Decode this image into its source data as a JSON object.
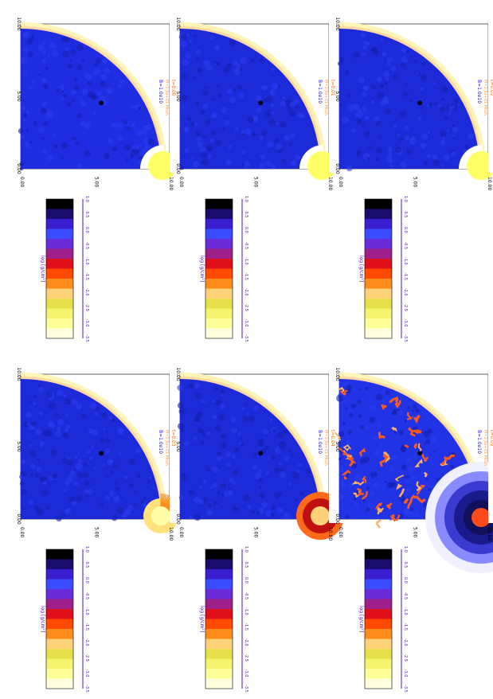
{
  "figure": {
    "colorbar_label": "log [g/cm²]",
    "colorbar_ticks": [
      "-3.5",
      "-3.0",
      "-2.5",
      "-2.0",
      "-1.5",
      "-1.0",
      "-0.5",
      "0.0",
      "0.5",
      "1.0"
    ]
  },
  "chart_data": [
    {
      "type": "heatmap",
      "panel": "top-left",
      "time_label": "t=0.00",
      "info_label": "M=1.0e+01 Msun",
      "model_label": "B=1.0e10",
      "x_ticks": [
        "0.00",
        "5.00",
        "10.00"
      ],
      "y_ticks": [
        "0.00",
        "5.00",
        "10.00"
      ],
      "colorbar_label": "log [g/cm²]",
      "colorbar_ticks": [
        "-3.5",
        "-3.0",
        "-2.5",
        "-2.0",
        "-1.5",
        "-1.0",
        "-0.5",
        "0.0",
        "0.5",
        "1.0"
      ],
      "core": "small-bright",
      "turbulence": "none",
      "colors": {
        "background": "#1f2ce0",
        "rim": "#fff3b8",
        "core": "#ffff66",
        "turbulence": "#ff5a1a"
      }
    },
    {
      "type": "heatmap",
      "panel": "top-middle",
      "time_label": "t=0.01",
      "info_label": "M=1.0e+01 Msun",
      "model_label": "B=1.0e10",
      "x_ticks": [
        "0.00",
        "5.00",
        "10.00"
      ],
      "y_ticks": [
        "0.00",
        "5.00",
        "10.00"
      ],
      "colorbar_label": "log [g/cm²]",
      "colorbar_ticks": [
        "-3.5",
        "-3.0",
        "-2.5",
        "-2.0",
        "-1.5",
        "-1.0",
        "-0.5",
        "0.0",
        "0.5",
        "1.0"
      ],
      "core": "small-bright",
      "turbulence": "none",
      "colors": {
        "background": "#1c2ad8",
        "rim": "#fff3b8",
        "core": "#ffff66",
        "turbulence": "#ff5a1a"
      }
    },
    {
      "type": "heatmap",
      "panel": "top-right",
      "time_label": "t=0.02",
      "info_label": "M=1.0e+01 Msun",
      "model_label": "B=1.0e10",
      "x_ticks": [
        "0.00",
        "5.00",
        "10.00"
      ],
      "y_ticks": [
        "0.00",
        "5.00",
        "10.00"
      ],
      "colorbar_label": "log [g/cm²]",
      "colorbar_ticks": [
        "-3.5",
        "-3.0",
        "-2.5",
        "-2.0",
        "-1.5",
        "-1.0",
        "-0.5",
        "0.0",
        "0.5",
        "1.0"
      ],
      "core": "small-bright",
      "turbulence": "none",
      "colors": {
        "background": "#1c2ad8",
        "rim": "#fff3b8",
        "core": "#ffff66",
        "turbulence": "#ff5a1a"
      }
    },
    {
      "type": "heatmap",
      "panel": "bottom-left",
      "time_label": "t=0.03",
      "info_label": "M=1.0e+01 Msun",
      "model_label": "B=1.0e10",
      "x_ticks": [
        "0.00",
        "5.00",
        "10.00"
      ],
      "y_ticks": [
        "0.00",
        "5.00",
        "10.00"
      ],
      "colorbar_label": "log [g/cm²]",
      "colorbar_ticks": [
        "-3.5",
        "-3.0",
        "-2.5",
        "-2.0",
        "-1.5",
        "-1.0",
        "-0.5",
        "0.0",
        "0.5",
        "1.0"
      ],
      "core": "spiky",
      "turbulence": "none",
      "colors": {
        "background": "#1c2ad8",
        "rim": "#fff3b8",
        "core": "#ffe27a",
        "turbulence": "#ff5a1a"
      }
    },
    {
      "type": "heatmap",
      "panel": "bottom-middle",
      "time_label": "t=0.04",
      "info_label": "M=1.0e+01 Msun",
      "model_label": "B=1.0e10",
      "x_ticks": [
        "0.00",
        "5.00",
        "10.00"
      ],
      "y_ticks": [
        "0.00",
        "5.00",
        "10.00"
      ],
      "colorbar_label": "log [g/cm²]",
      "colorbar_ticks": [
        "-3.5",
        "-3.0",
        "-2.5",
        "-2.0",
        "-1.5",
        "-1.0",
        "-0.5",
        "0.0",
        "0.5",
        "1.0"
      ],
      "core": "red-ring",
      "turbulence": "none",
      "colors": {
        "background": "#1c2ad8",
        "rim": "#fff3b8",
        "core": "#ff4a1a",
        "turbulence": "#ff5a1a"
      }
    },
    {
      "type": "heatmap",
      "panel": "bottom-right",
      "time_label": "t=0.05",
      "info_label": "M=1.0e+01 Msun",
      "model_label": "B=1.0e10",
      "x_ticks": [
        "0.00",
        "5.00",
        "10.00"
      ],
      "y_ticks": [
        "0.00",
        "5.00",
        "10.00"
      ],
      "colorbar_label": "log [g/cm²]",
      "colorbar_ticks": [
        "-3.5",
        "-3.0",
        "-2.5",
        "-2.0",
        "-1.5",
        "-1.0",
        "-0.5",
        "0.0",
        "0.5",
        "1.0"
      ],
      "core": "large-dark",
      "turbulence": "strong",
      "colors": {
        "background": "#2233e6",
        "rim": "#fff3b8",
        "core": "#10105a",
        "turbulence": "#ff5a1a"
      }
    }
  ]
}
